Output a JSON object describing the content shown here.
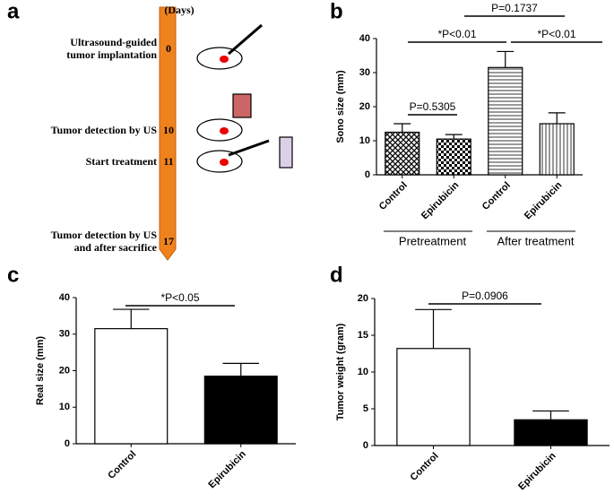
{
  "panel_labels": [
    "a",
    "b",
    "c",
    "d"
  ],
  "timeline": {
    "header": "(Days)",
    "events": [
      {
        "day": 0,
        "lines": [
          "Ultrasound-guided",
          "tumor implantation"
        ]
      },
      {
        "day": 10,
        "lines": [
          "Tumor detection by US"
        ]
      },
      {
        "day": 11,
        "lines": [
          "Start treatment"
        ]
      },
      {
        "day": 17,
        "lines": [
          "Tumor detection by US",
          "and after sacrifice"
        ]
      }
    ]
  },
  "chart_data": [
    {
      "type": "bar",
      "ylabel": "Sono size (mm)",
      "categories": [
        "Control",
        "Epirubicin",
        "Control",
        "Epirubicin"
      ],
      "groups": [
        "Pretreatment",
        "After treatment"
      ],
      "values": [
        12.5,
        10.5,
        31.5,
        15
      ],
      "errors": [
        2.5,
        1.3,
        4.7,
        3.2
      ],
      "ylim": [
        0,
        40
      ],
      "yticks": [
        0,
        10,
        20,
        30,
        40
      ],
      "annotations": [
        "P=0.1737",
        "*P<0.01",
        "*P<0.01",
        "P=0.5305"
      ]
    },
    {
      "type": "bar",
      "ylabel": "Real size (mm)",
      "categories": [
        "Control",
        "Epirubicin"
      ],
      "colors": [
        "#ffffff",
        "#000000"
      ],
      "values": [
        31.5,
        18.5
      ],
      "errors": [
        5.3,
        3.5
      ],
      "ylim": [
        0,
        40
      ],
      "yticks": [
        0,
        10,
        20,
        30,
        40
      ],
      "annotations": [
        "*P<0.05"
      ]
    },
    {
      "type": "bar",
      "ylabel": "Tumor weight (gram)",
      "categories": [
        "Control",
        "Epirubicin"
      ],
      "colors": [
        "#ffffff",
        "#000000"
      ],
      "values": [
        13.2,
        3.5
      ],
      "errors": [
        5.3,
        1.2
      ],
      "ylim": [
        0,
        20
      ],
      "yticks": [
        0,
        5,
        10,
        15,
        20
      ],
      "annotations": [
        "P=0.0906"
      ]
    }
  ]
}
